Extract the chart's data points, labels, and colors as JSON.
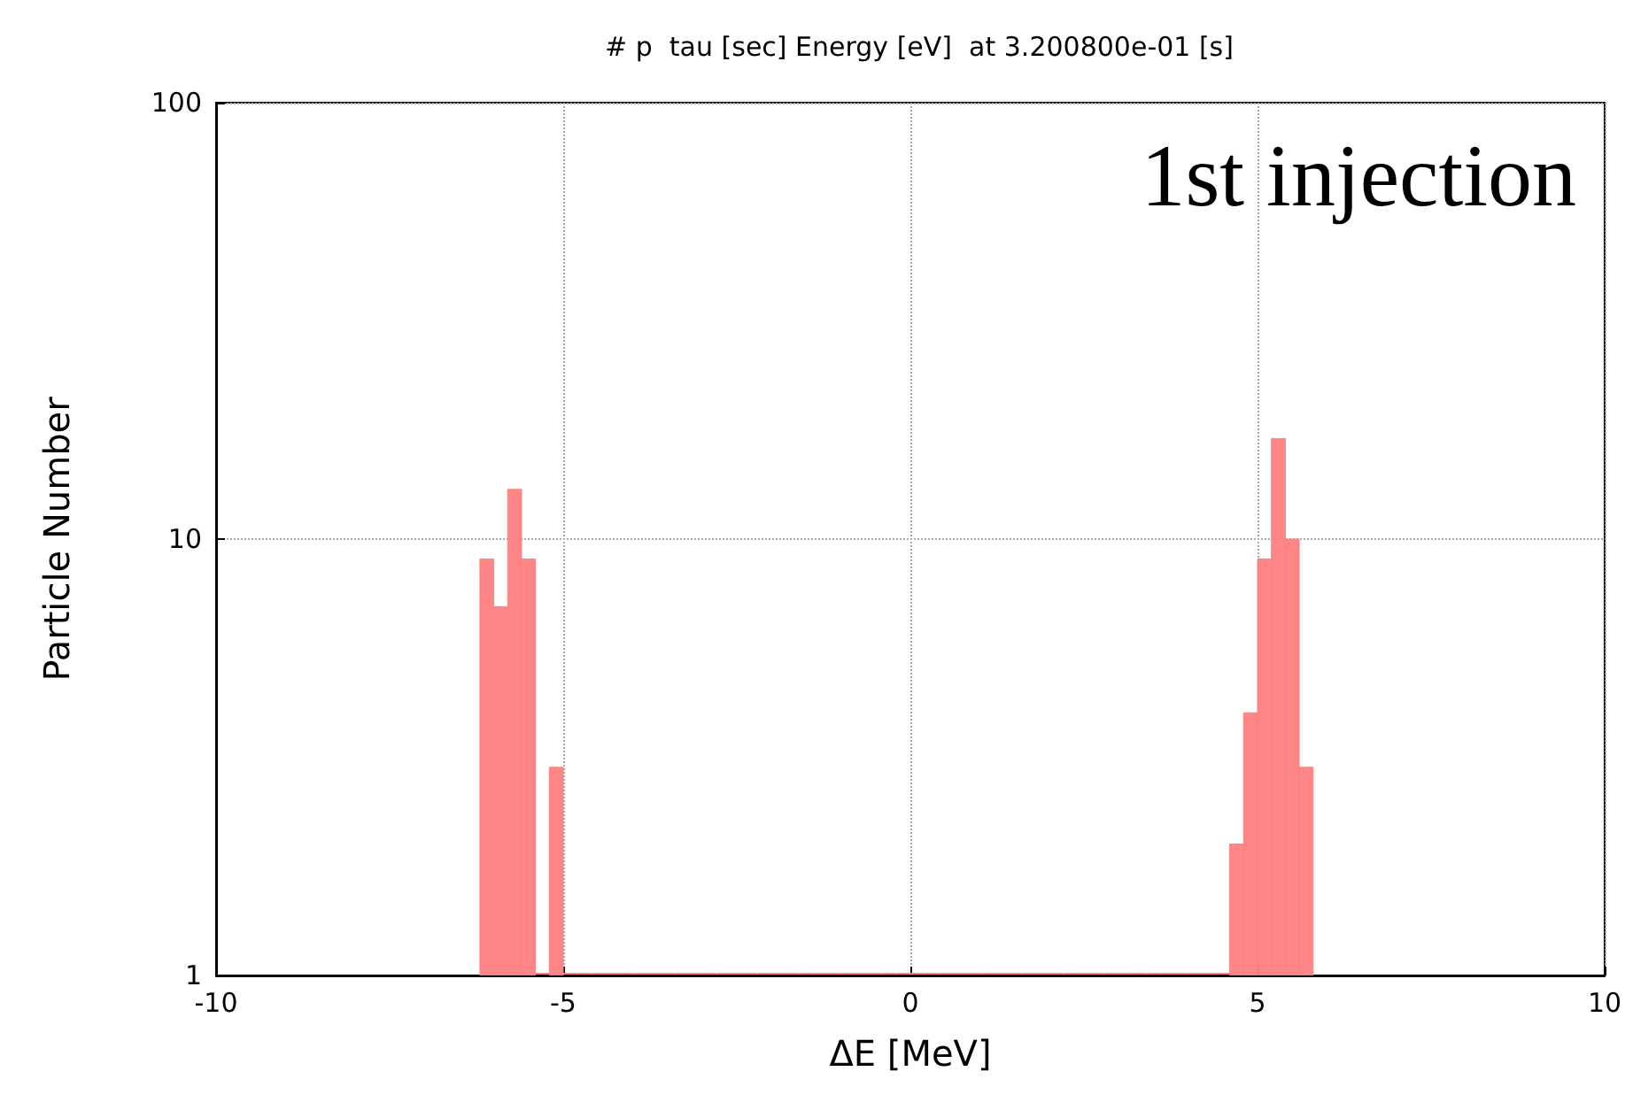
{
  "chart_data": {
    "type": "histogram",
    "title": "# p  tau [sec] Energy [eV]  at 3.200800e-01 [s]",
    "xlabel": "ΔE [MeV]",
    "ylabel": "Particle Number",
    "annotations": [
      "1st injection"
    ],
    "bins": [
      -6.2,
      -6.0,
      -5.8,
      -5.6,
      -5.4,
      -5.2,
      -5.0,
      -4.8,
      -4.6,
      -4.4,
      -4.2,
      -4.0,
      -3.8,
      -3.6,
      -3.4,
      -3.2,
      -3.0,
      -2.8,
      -2.6,
      -2.4,
      -2.2,
      -2.0,
      -1.8,
      -1.6,
      -1.4,
      -1.2,
      -1.0,
      -0.8,
      -0.6,
      -0.4,
      -0.2,
      0,
      0.2,
      0.4,
      0.6,
      0.8,
      1.0,
      1.2,
      1.4,
      1.6,
      1.8,
      2.0,
      2.2,
      2.4,
      2.6,
      2.8,
      3.0,
      3.2,
      3.4,
      3.6,
      3.8,
      4.0,
      4.2,
      4.4,
      4.6,
      4.8,
      5.0,
      5.2,
      5.4,
      5.6,
      5.8
    ],
    "values": [
      9,
      7,
      13,
      9,
      null,
      3,
      null,
      null,
      null,
      null,
      null,
      null,
      null,
      null,
      null,
      null,
      null,
      null,
      null,
      null,
      null,
      null,
      null,
      null,
      null,
      null,
      null,
      null,
      null,
      null,
      null,
      null,
      null,
      null,
      null,
      null,
      null,
      null,
      null,
      null,
      null,
      null,
      null,
      null,
      null,
      null,
      null,
      null,
      null,
      null,
      null,
      null,
      null,
      null,
      2,
      4,
      9,
      17,
      10,
      3
    ],
    "color": "#ff7f7f",
    "xlim": [
      -10,
      10
    ],
    "xticks": [
      -10,
      -5,
      0,
      5,
      10
    ],
    "ylim": [
      1,
      100
    ],
    "yticks": [
      1,
      10,
      100
    ],
    "log": "y",
    "grid": true
  }
}
